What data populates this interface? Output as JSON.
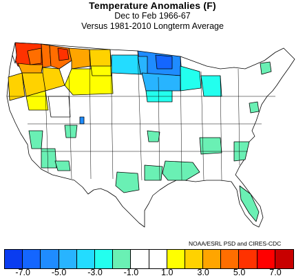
{
  "title": "Temperature Anomalies (F)",
  "period": "Dec to Feb 1966-67",
  "baseline": "Versus 1981-2010 Longterm Average",
  "credit": "NOAA/ESRL PSD and CIRES-CDC",
  "colorbar": {
    "colors": [
      "#0a3cf0",
      "#1466ff",
      "#1f8cff",
      "#28b4ff",
      "#23dcff",
      "#23ffee",
      "#6af0b4",
      "#ffffff",
      "#ffffff",
      "#ffff00",
      "#ffd200",
      "#ffa500",
      "#ff6e00",
      "#ff3200",
      "#ff0000",
      "#c80000"
    ],
    "tick_labels": [
      "-7.0",
      "-5.0",
      "-3.0",
      "-1.0",
      "1.0",
      "3.0",
      "5.0",
      "7.0"
    ]
  },
  "map": {
    "regions": [
      {
        "name": "Washington",
        "anomaly": "5.0 to 6.0",
        "color": "#ff3200"
      },
      {
        "name": "Northern Idaho / Western Montana",
        "anomaly": "4.0 to 5.0",
        "color": "#ff6e00"
      },
      {
        "name": "Oregon",
        "anomaly": "2.0 to 4.0",
        "color": "#ffd200"
      },
      {
        "name": "Central Montana / Wyoming",
        "anomaly": "1.0 to 3.0",
        "color": "#ffff00"
      },
      {
        "name": "Minnesota",
        "anomaly": "-5.0 to -3.0",
        "color": "#1f8cff"
      },
      {
        "name": "Upper Midwest",
        "anomaly": "-3.0 to -1.0",
        "color": "#23ffee"
      },
      {
        "name": "South and East",
        "anomaly": "-1.0 to 0",
        "color": "#6af0b4"
      }
    ]
  }
}
